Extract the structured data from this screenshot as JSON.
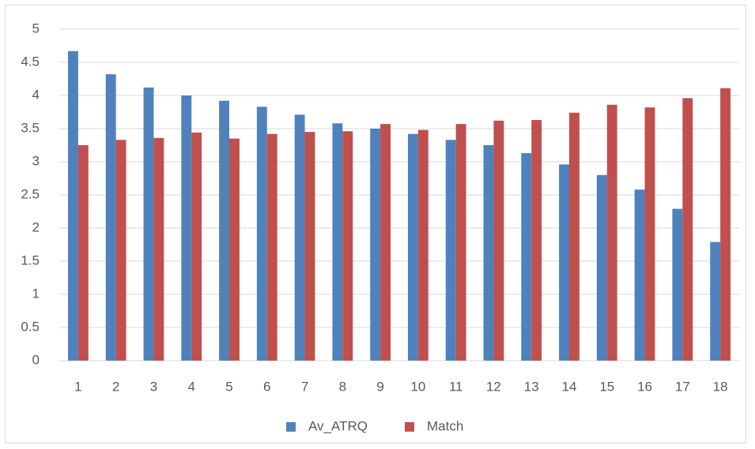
{
  "chart_data": {
    "type": "bar",
    "categories": [
      "1",
      "2",
      "3",
      "4",
      "5",
      "6",
      "7",
      "8",
      "9",
      "10",
      "11",
      "12",
      "13",
      "14",
      "15",
      "16",
      "17",
      "18"
    ],
    "series": [
      {
        "name": "Av_ATRQ",
        "color": "#4f81bd",
        "values": [
          4.67,
          4.32,
          4.12,
          4.0,
          3.92,
          3.83,
          3.71,
          3.58,
          3.5,
          3.42,
          3.33,
          3.25,
          3.13,
          2.96,
          2.8,
          2.58,
          2.29,
          1.79
        ]
      },
      {
        "name": "Match",
        "color": "#c0504d",
        "values": [
          3.25,
          3.33,
          3.36,
          3.44,
          3.35,
          3.42,
          3.45,
          3.46,
          3.57,
          3.48,
          3.57,
          3.62,
          3.63,
          3.74,
          3.86,
          3.82,
          3.96,
          4.11
        ]
      }
    ],
    "ylim": [
      0,
      5
    ],
    "yticks": [
      0,
      0.5,
      1,
      1.5,
      2,
      2.5,
      3,
      3.5,
      4,
      4.5,
      5
    ],
    "grid": true,
    "legend": "bottom"
  }
}
